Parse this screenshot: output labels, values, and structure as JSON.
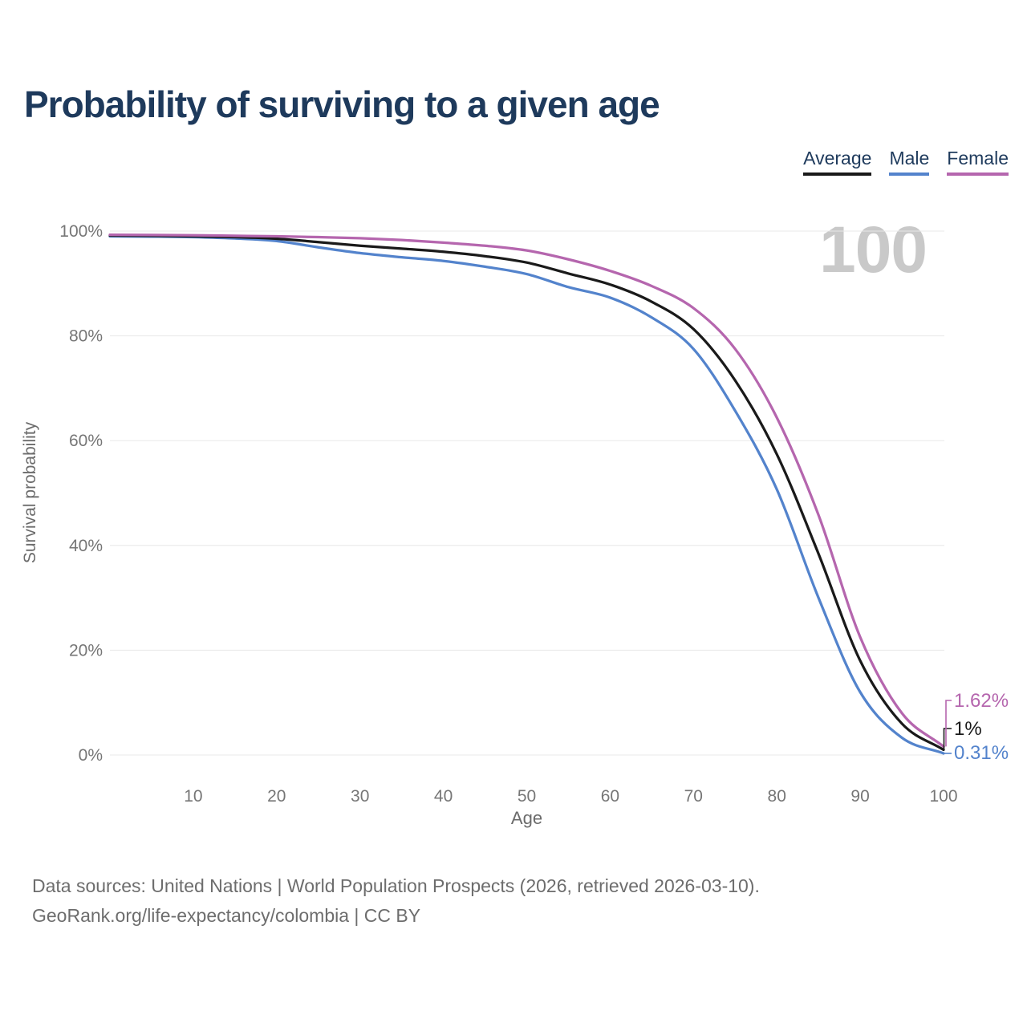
{
  "title": "Probability of surviving to a given age",
  "watermark": "100",
  "legend": {
    "items": [
      {
        "label": "Average",
        "color": "#1a1a1a"
      },
      {
        "label": "Male",
        "color": "#5383cc"
      },
      {
        "label": "Female",
        "color": "#b566ae"
      }
    ]
  },
  "chart_data": {
    "type": "line",
    "title": "Probability of surviving to a given age",
    "xlabel": "Age",
    "ylabel": "Survival probability",
    "xlim": [
      0,
      100
    ],
    "ylim": [
      0,
      100
    ],
    "xticks": [
      10,
      20,
      30,
      40,
      50,
      60,
      70,
      80,
      90,
      100
    ],
    "yticks": [
      0,
      20,
      40,
      60,
      80,
      100
    ],
    "ytick_suffix": "%",
    "grid": "horizontal-only",
    "legend_position": "top-right",
    "x": [
      0,
      5,
      10,
      15,
      20,
      25,
      30,
      35,
      40,
      45,
      50,
      55,
      60,
      65,
      70,
      75,
      80,
      85,
      90,
      95,
      100
    ],
    "series": [
      {
        "name": "Average",
        "color": "#1a1a1a",
        "end_label": "1%",
        "values": [
          99.15,
          99.1,
          99.0,
          98.85,
          98.55,
          97.9,
          97.2,
          96.65,
          96.05,
          95.2,
          94.0,
          91.9,
          89.8,
          86.5,
          81.3,
          71.5,
          57.4,
          38.4,
          18.0,
          6.0,
          1.0
        ]
      },
      {
        "name": "Male",
        "color": "#5383cc",
        "end_label": "0.31%",
        "values": [
          99.0,
          98.95,
          98.85,
          98.6,
          98.1,
          96.9,
          95.8,
          95.0,
          94.3,
          93.2,
          91.8,
          89.3,
          87.3,
          83.5,
          77.5,
          65.7,
          50.7,
          30.0,
          12.0,
          3.3,
          0.31
        ]
      },
      {
        "name": "Female",
        "color": "#b566ae",
        "end_label": "1.62%",
        "values": [
          99.3,
          99.25,
          99.2,
          99.1,
          99.0,
          98.85,
          98.65,
          98.3,
          97.8,
          97.2,
          96.3,
          94.6,
          92.4,
          89.5,
          85.3,
          77.5,
          64.4,
          45.8,
          22.5,
          8.0,
          1.62
        ]
      }
    ]
  },
  "footer": {
    "line1": "Data sources: United Nations | World Population Prospects (2026, retrieved 2026-03-10).",
    "line2": "GeoRank.org/life-expectancy/colombia | CC BY"
  }
}
